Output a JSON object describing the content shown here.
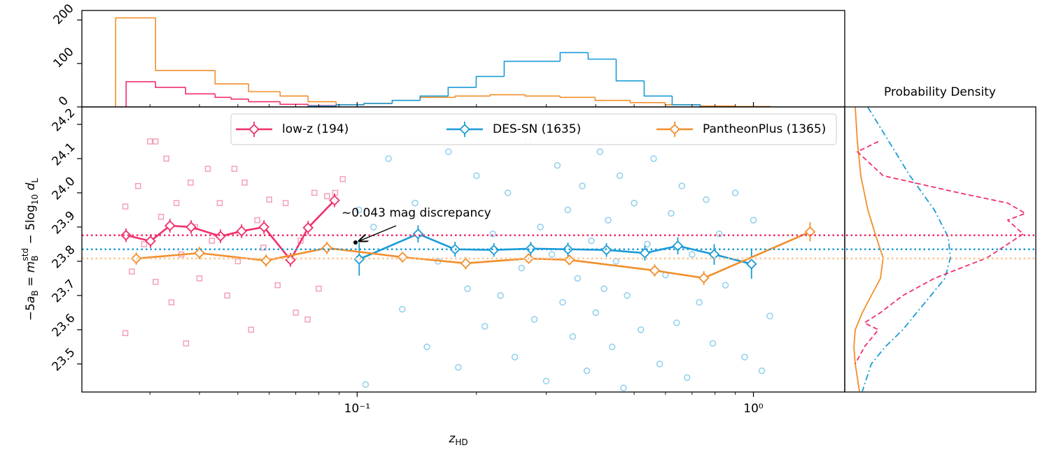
{
  "chart_data": [
    {
      "type": "histogram",
      "xscale": "log",
      "xlim": [
        0.0202,
        1.7
      ],
      "ylim": [
        0,
        222
      ],
      "yticks": [
        0,
        100,
        200
      ],
      "series": [
        {
          "color": "#f28e2b",
          "bins": [
            0.02458,
            0.03099,
            0.04381,
            0.05322,
            0.06391,
            0.07521,
            0.08851,
            0.1041,
            0.1226,
            0.1442,
            0.1768,
            0.2166,
            0.2655,
            0.3253,
            0.3988,
            0.4887,
            0.5989,
            0.734,
            0.8995,
            1.1025
          ],
          "counts": [
            205,
            84,
            53,
            35,
            25,
            12,
            5,
            8,
            15,
            22,
            25,
            28,
            25,
            22,
            15,
            10,
            5,
            2,
            1
          ]
        },
        {
          "color": "#f0306a",
          "bins": [
            0.02612,
            0.03099,
            0.03691,
            0.04381,
            0.04808,
            0.05322,
            0.06391,
            0.07521,
            0.08851
          ],
          "counts": [
            58,
            45,
            30,
            22,
            18,
            12,
            6,
            3
          ]
        },
        {
          "color": "#1a9bd7",
          "bins": [
            0.07521,
            0.08851,
            0.1041,
            0.1226,
            0.1442,
            0.1697,
            0.1997,
            0.235,
            0.2765,
            0.3253,
            0.3828,
            0.4505,
            0.5301,
            0.6237,
            0.734
          ],
          "counts": [
            2,
            5,
            8,
            15,
            25,
            45,
            70,
            105,
            105,
            125,
            110,
            60,
            25,
            5
          ]
        }
      ]
    },
    {
      "type": "errorbar",
      "xscale": "log",
      "xlabel": "z",
      "xlabel_sub": "HD",
      "ylabel_parts": [
        "−5",
        "a",
        "B",
        " = ",
        "m",
        "B",
        "std",
        " − 5log",
        "10",
        " ",
        "d",
        "L"
      ],
      "ylabel_styles": [
        "normal",
        "italic",
        "sub",
        "normal",
        "italic",
        "sub",
        "sup",
        "normal",
        "sub",
        "normal",
        "italic",
        "sub"
      ],
      "xlim": [
        0.0202,
        1.7
      ],
      "ylim": [
        23.418,
        24.251
      ],
      "xticks": [
        {
          "value": 0.1,
          "label": "10⁻¹"
        },
        {
          "value": 1,
          "label": "10⁰"
        }
      ],
      "xminorticks": [
        0.03,
        0.04,
        0.05,
        0.06,
        0.07,
        0.08,
        0.09,
        0.2,
        0.3,
        0.4,
        0.5,
        0.6,
        0.7,
        0.8,
        0.9
      ],
      "yticks": [
        23.5,
        23.6,
        23.7,
        23.8,
        23.9,
        {
          "value": 24,
          "label": "24.0"
        },
        24.1,
        24.2
      ],
      "legend": "upper center",
      "annotation": "~0.043 mag discrepancy",
      "scatter": [
        {
          "color": "#f5a0b8",
          "marker": "square",
          "x": [
            0.026,
            0.026,
            0.027,
            0.028,
            0.029,
            0.03,
            0.031,
            0.031,
            0.032,
            0.033,
            0.034,
            0.035,
            0.036,
            0.037,
            0.038,
            0.039,
            0.04,
            0.042,
            0.043,
            0.045,
            0.047,
            0.049,
            0.05,
            0.052,
            0.054,
            0.056,
            0.058,
            0.06,
            0.063,
            0.066,
            0.07,
            0.072,
            0.075,
            0.078,
            0.08,
            0.084,
            0.088,
            0.092
          ],
          "values": [
            23.96,
            23.59,
            23.77,
            24.02,
            23.85,
            24.15,
            24.15,
            23.74,
            23.93,
            24.1,
            23.68,
            23.97,
            23.82,
            23.56,
            24.03,
            23.9,
            23.75,
            24.07,
            23.86,
            23.97,
            23.7,
            24.07,
            23.8,
            24.03,
            23.6,
            23.92,
            23.84,
            23.98,
            23.73,
            23.97,
            23.65,
            23.86,
            23.63,
            24.0,
            23.72,
            23.99,
            24.0,
            24.04
          ]
        },
        {
          "color": "#8ecfee",
          "marker": "circle",
          "x": [
            0.101,
            0.105,
            0.11,
            0.12,
            0.13,
            0.14,
            0.15,
            0.16,
            0.17,
            0.18,
            0.19,
            0.2,
            0.21,
            0.22,
            0.23,
            0.24,
            0.25,
            0.26,
            0.27,
            0.28,
            0.29,
            0.3,
            0.31,
            0.32,
            0.33,
            0.34,
            0.35,
            0.36,
            0.37,
            0.38,
            0.39,
            0.4,
            0.41,
            0.42,
            0.43,
            0.44,
            0.45,
            0.46,
            0.47,
            0.48,
            0.5,
            0.52,
            0.54,
            0.56,
            0.58,
            0.6,
            0.62,
            0.64,
            0.66,
            0.68,
            0.7,
            0.73,
            0.76,
            0.79,
            0.82,
            0.85,
            0.9,
            0.95,
            1.0,
            1.05,
            1.1
          ],
          "values": [
            23.95,
            23.44,
            23.9,
            24.1,
            23.66,
            23.97,
            23.55,
            23.8,
            24.12,
            23.49,
            23.72,
            24.05,
            23.61,
            23.88,
            23.7,
            24.0,
            23.52,
            23.78,
            24.15,
            23.63,
            23.9,
            23.45,
            23.82,
            24.08,
            23.68,
            23.95,
            23.58,
            23.75,
            24.02,
            23.48,
            23.86,
            23.65,
            24.12,
            23.72,
            23.92,
            23.55,
            23.8,
            24.05,
            23.43,
            23.7,
            23.97,
            23.6,
            23.85,
            24.1,
            23.5,
            23.76,
            23.94,
            23.62,
            24.02,
            23.46,
            23.82,
            23.68,
            23.98,
            23.56,
            23.88,
            23.73,
            24.0,
            23.52,
            23.92,
            23.48,
            23.64
          ]
        }
      ],
      "series": [
        {
          "name": "low-z (194)",
          "color": "#f0306a",
          "mean": 23.876,
          "x": [
            0.0261,
            0.0301,
            0.0337,
            0.0381,
            0.0452,
            0.0511,
            0.0582,
            0.0679,
            0.0752,
            0.0877
          ],
          "values": [
            23.876,
            23.859,
            23.904,
            23.9,
            23.873,
            23.888,
            23.9,
            23.804,
            23.898,
            23.978
          ],
          "errors": [
            0.02,
            0.02,
            0.02,
            0.02,
            0.02,
            0.02,
            0.02,
            0.02,
            0.02,
            0.02
          ]
        },
        {
          "name": "DES-SN (1635)",
          "color": "#1a9bd7",
          "mean": 23.835,
          "x": [
            0.1012,
            0.1425,
            0.1766,
            0.2213,
            0.2742,
            0.3403,
            0.4257,
            0.5323,
            0.6444,
            0.7962,
            0.989
          ],
          "values": [
            23.806,
            23.88,
            23.835,
            23.833,
            23.837,
            23.835,
            23.833,
            23.824,
            23.845,
            23.82,
            23.792
          ],
          "errors": [
            0.048,
            0.025,
            0.022,
            0.02,
            0.02,
            0.02,
            0.02,
            0.022,
            0.025,
            0.03,
            0.043
          ]
        },
        {
          "name": "PantheonPlus (1365)",
          "color": "#f28e2b",
          "mean": 23.808,
          "mean_color": "#f9c48f",
          "x": [
            0.0277,
            0.04,
            0.0589,
            0.0839,
            0.1302,
            0.1879,
            0.271,
            0.3431,
            0.5634,
            0.7497,
            1.39
          ],
          "values": [
            23.808,
            23.824,
            23.802,
            23.839,
            23.812,
            23.794,
            23.808,
            23.804,
            23.773,
            23.751,
            23.886
          ],
          "errors": [
            0.018,
            0.018,
            0.018,
            0.018,
            0.015,
            0.018,
            0.015,
            0.015,
            0.018,
            0.02,
            0.028
          ]
        }
      ]
    },
    {
      "type": "line",
      "title": "Probability Density",
      "xlim": [
        0,
        10
      ],
      "ylim": [
        23.418,
        24.251
      ],
      "series": [
        {
          "color": "#f28e2b",
          "dash": "solid",
          "y": [
            24.25,
            24.15,
            24.05,
            23.95,
            23.87,
            23.81,
            23.75,
            23.7,
            23.65,
            23.6,
            23.55,
            23.5,
            23.42
          ],
          "values": [
            0.55,
            0.66,
            0.84,
            1.21,
            1.65,
            2.01,
            1.87,
            1.39,
            0.92,
            0.55,
            0.48,
            0.55,
            0.77
          ]
        },
        {
          "color": "#1a9bd7",
          "dash": "dashdot",
          "y": [
            24.25,
            24.15,
            24.05,
            23.95,
            23.87,
            23.81,
            23.75,
            23.7,
            23.65,
            23.6,
            23.55,
            23.5,
            23.42
          ],
          "values": [
            1.21,
            2.31,
            3.41,
            4.69,
            5.42,
            5.53,
            5.24,
            4.51,
            3.77,
            3.04,
            2.12,
            1.39,
            0.92
          ]
        },
        {
          "color": "#f0306a",
          "dash": "dashed",
          "y": [
            24.15,
            24.12,
            24.05,
            24.0,
            23.97,
            23.94,
            23.92,
            23.88,
            23.85,
            23.81,
            23.75,
            23.7,
            23.65,
            23.62,
            23.6,
            23.55,
            23.5
          ],
          "values": [
            1.76,
            0.66,
            2.01,
            5.97,
            8.53,
            9.45,
            8.53,
            9.34,
            8.53,
            7.44,
            4.69,
            3.04,
            1.87,
            1.03,
            1.76,
            1.03,
            0.55
          ]
        }
      ]
    }
  ]
}
